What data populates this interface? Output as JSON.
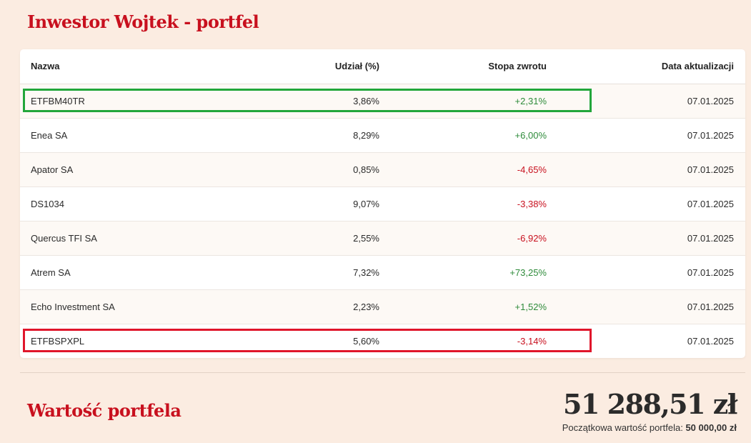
{
  "header": {
    "title": "Inwestor Wojtek - portfel"
  },
  "table": {
    "columns": [
      "Nazwa",
      "Udział (%)",
      "Stopa zwrotu",
      "Data aktualizacji"
    ],
    "rows": [
      {
        "name": "ETFBM40TR",
        "share": "3,86%",
        "return": "+2,31%",
        "return_sign": "positive",
        "date": "07.01.2025"
      },
      {
        "name": "Enea SA",
        "share": "8,29%",
        "return": "+6,00%",
        "return_sign": "positive",
        "date": "07.01.2025"
      },
      {
        "name": "Apator SA",
        "share": "0,85%",
        "return": "-4,65%",
        "return_sign": "negative",
        "date": "07.01.2025"
      },
      {
        "name": "DS1034",
        "share": "9,07%",
        "return": "-3,38%",
        "return_sign": "negative",
        "date": "07.01.2025"
      },
      {
        "name": "Quercus TFI SA",
        "share": "2,55%",
        "return": "-6,92%",
        "return_sign": "negative",
        "date": "07.01.2025"
      },
      {
        "name": "Atrem SA",
        "share": "7,32%",
        "return": "+73,25%",
        "return_sign": "positive",
        "date": "07.01.2025"
      },
      {
        "name": "Echo Investment SA",
        "share": "2,23%",
        "return": "+1,52%",
        "return_sign": "positive",
        "date": "07.01.2025"
      },
      {
        "name": "ETFBSPXPL",
        "share": "5,60%",
        "return": "-3,14%",
        "return_sign": "negative",
        "date": "07.01.2025"
      }
    ],
    "highlights": [
      {
        "row_index": 0,
        "color": "#22a63b"
      },
      {
        "row_index": 7,
        "color": "#e0162b"
      }
    ]
  },
  "summary": {
    "title": "Wartość portfela",
    "value": "51 288,51 zł",
    "initial_label": "Początkowa wartość portfela:",
    "initial_value": "50 000,00 zł"
  },
  "colors": {
    "accent": "#c8101e",
    "positive": "#2e8b3a",
    "negative": "#c8101e",
    "background": "#fbece1"
  }
}
